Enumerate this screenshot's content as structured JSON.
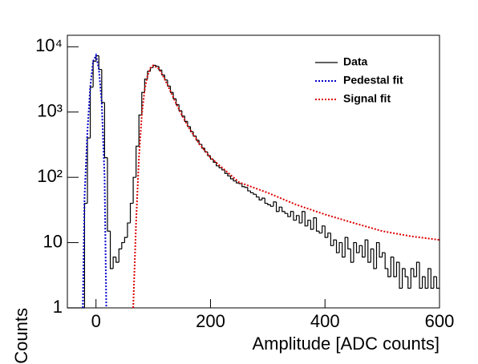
{
  "chart_data": {
    "type": "histogram",
    "xlabel": "Amplitude [ADC counts]",
    "ylabel": "Counts",
    "xlim": [
      -50,
      600
    ],
    "xticks": [
      0,
      200,
      400,
      600
    ],
    "ylim": [
      1,
      15000
    ],
    "yticks": [
      1,
      10,
      {
        "value": 100,
        "label": "10²"
      },
      {
        "value": 1000,
        "label": "10³"
      },
      {
        "value": 10000,
        "label": "10⁴"
      }
    ],
    "log_y": true,
    "legend": "upper right",
    "series": [
      {
        "name": "Data",
        "type": "histogram",
        "color": "#000000",
        "bins": [
          -50,
          -45,
          -40,
          -35,
          -30,
          -25,
          -20,
          -15,
          -10,
          -5,
          0,
          5,
          10,
          15,
          20,
          25,
          30,
          35,
          40,
          45,
          50,
          55,
          60,
          65,
          70,
          75,
          80,
          85,
          90,
          95,
          100,
          105,
          110,
          115,
          120,
          125,
          130,
          135,
          140,
          145,
          150,
          155,
          160,
          165,
          170,
          175,
          180,
          185,
          190,
          195,
          200,
          205,
          210,
          215,
          220,
          225,
          230,
          235,
          240,
          245,
          250,
          255,
          260,
          265,
          270,
          275,
          280,
          285,
          290,
          295,
          300,
          305,
          310,
          315,
          320,
          325,
          330,
          335,
          340,
          345,
          350,
          355,
          360,
          365,
          370,
          375,
          380,
          385,
          390,
          395,
          400,
          405,
          410,
          415,
          420,
          425,
          430,
          435,
          440,
          445,
          450,
          455,
          460,
          465,
          470,
          475,
          480,
          485,
          490,
          495,
          500,
          505,
          510,
          515,
          520,
          525,
          530,
          535,
          540,
          545,
          550,
          555,
          560,
          565,
          570,
          575,
          580,
          585,
          590,
          595,
          600
        ],
        "values": [
          0,
          0,
          0,
          0,
          0,
          0,
          40,
          400,
          2400,
          6000,
          7300,
          4500,
          1400,
          200,
          15,
          4,
          6,
          5,
          8,
          10,
          12,
          20,
          40,
          100,
          300,
          900,
          2000,
          3200,
          4200,
          4800,
          5200,
          5000,
          4400,
          3700,
          3100,
          2500,
          2000,
          1600,
          1300,
          1050,
          870,
          720,
          600,
          500,
          430,
          370,
          320,
          280,
          245,
          215,
          190,
          170,
          150,
          140,
          130,
          115,
          105,
          95,
          88,
          82,
          80,
          72,
          70,
          62,
          58,
          55,
          50,
          45,
          48,
          40,
          38,
          36,
          42,
          30,
          35,
          30,
          28,
          25,
          30,
          22,
          26,
          20,
          30,
          18,
          22,
          16,
          24,
          15,
          14,
          18,
          12,
          14,
          9,
          11,
          7,
          10,
          6,
          12,
          8,
          5,
          10,
          7,
          9,
          6,
          11,
          5,
          8,
          4,
          10,
          6,
          7,
          4,
          3,
          6,
          3,
          5,
          2,
          4,
          3,
          2,
          4,
          3,
          5,
          2,
          3,
          2,
          4,
          2,
          3,
          2
        ]
      },
      {
        "name": "Pedestal fit",
        "type": "line",
        "color": "#0000cc",
        "x": [
          -23,
          -20,
          -15,
          -10,
          -5,
          0,
          5,
          10,
          15,
          18
        ],
        "values": [
          1,
          50,
          495,
          2440,
          6010,
          7400,
          4550,
          1400,
          100,
          1
        ]
      },
      {
        "name": "Signal fit",
        "type": "line",
        "color": "#dd0000",
        "x": [
          65,
          70,
          75,
          80,
          85,
          90,
          95,
          100,
          110,
          120,
          130,
          140,
          150,
          160,
          180,
          200,
          250,
          300,
          350,
          400,
          450,
          500,
          550,
          600
        ],
        "values": [
          1,
          20,
          200,
          900,
          2200,
          3600,
          4700,
          5200,
          4600,
          3200,
          2100,
          1350,
          900,
          620,
          330,
          200,
          84,
          58,
          38,
          27,
          20,
          15,
          12.5,
          11
        ]
      }
    ]
  }
}
